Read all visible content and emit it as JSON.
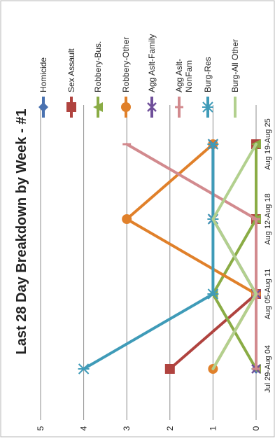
{
  "chart_data": {
    "type": "line",
    "title": "Last 28 Day Breakdown by Week - #1",
    "xlabel": "",
    "ylabel": "",
    "categories": [
      "Jul 29-Aug 04",
      "Aug 05-Aug 11",
      "Aug 12-Aug 18",
      "Aug 19-Aug 25"
    ],
    "ylim": [
      0,
      5
    ],
    "yticks": [
      "0",
      "1",
      "2",
      "3",
      "4",
      "5"
    ],
    "grid": true,
    "legend_position": "top",
    "series": [
      {
        "name": "Homicide",
        "color": "#4a72b0",
        "marker": "diamond",
        "values": [
          0,
          0,
          0,
          0
        ]
      },
      {
        "name": "Sex Assault",
        "color": "#b0433f",
        "marker": "square",
        "values": [
          2,
          0,
          0,
          0
        ]
      },
      {
        "name": "Robbery-Bus.",
        "color": "#8aac45",
        "marker": "triangle",
        "values": [
          0,
          1,
          0,
          0
        ]
      },
      {
        "name": "Robbery-Other",
        "color": "#e0802a",
        "marker": "circle",
        "values": [
          1,
          0,
          3,
          1
        ]
      },
      {
        "name": "Agg Aslt-Family",
        "color": "#6f4f9a",
        "marker": "x",
        "values": [
          0,
          0,
          1,
          1
        ]
      },
      {
        "name": "Agg Aslt-NonFam",
        "color": "#d28a8e",
        "marker": "dash",
        "values": [
          0,
          0,
          0,
          3
        ]
      },
      {
        "name": "Burg-Res",
        "color": "#3f9bb8",
        "marker": "star",
        "values": [
          4,
          1,
          1,
          1
        ]
      },
      {
        "name": "Burg-All Other",
        "color": "#b2d08e",
        "marker": "none",
        "values": [
          1,
          0,
          1,
          0
        ]
      }
    ]
  }
}
